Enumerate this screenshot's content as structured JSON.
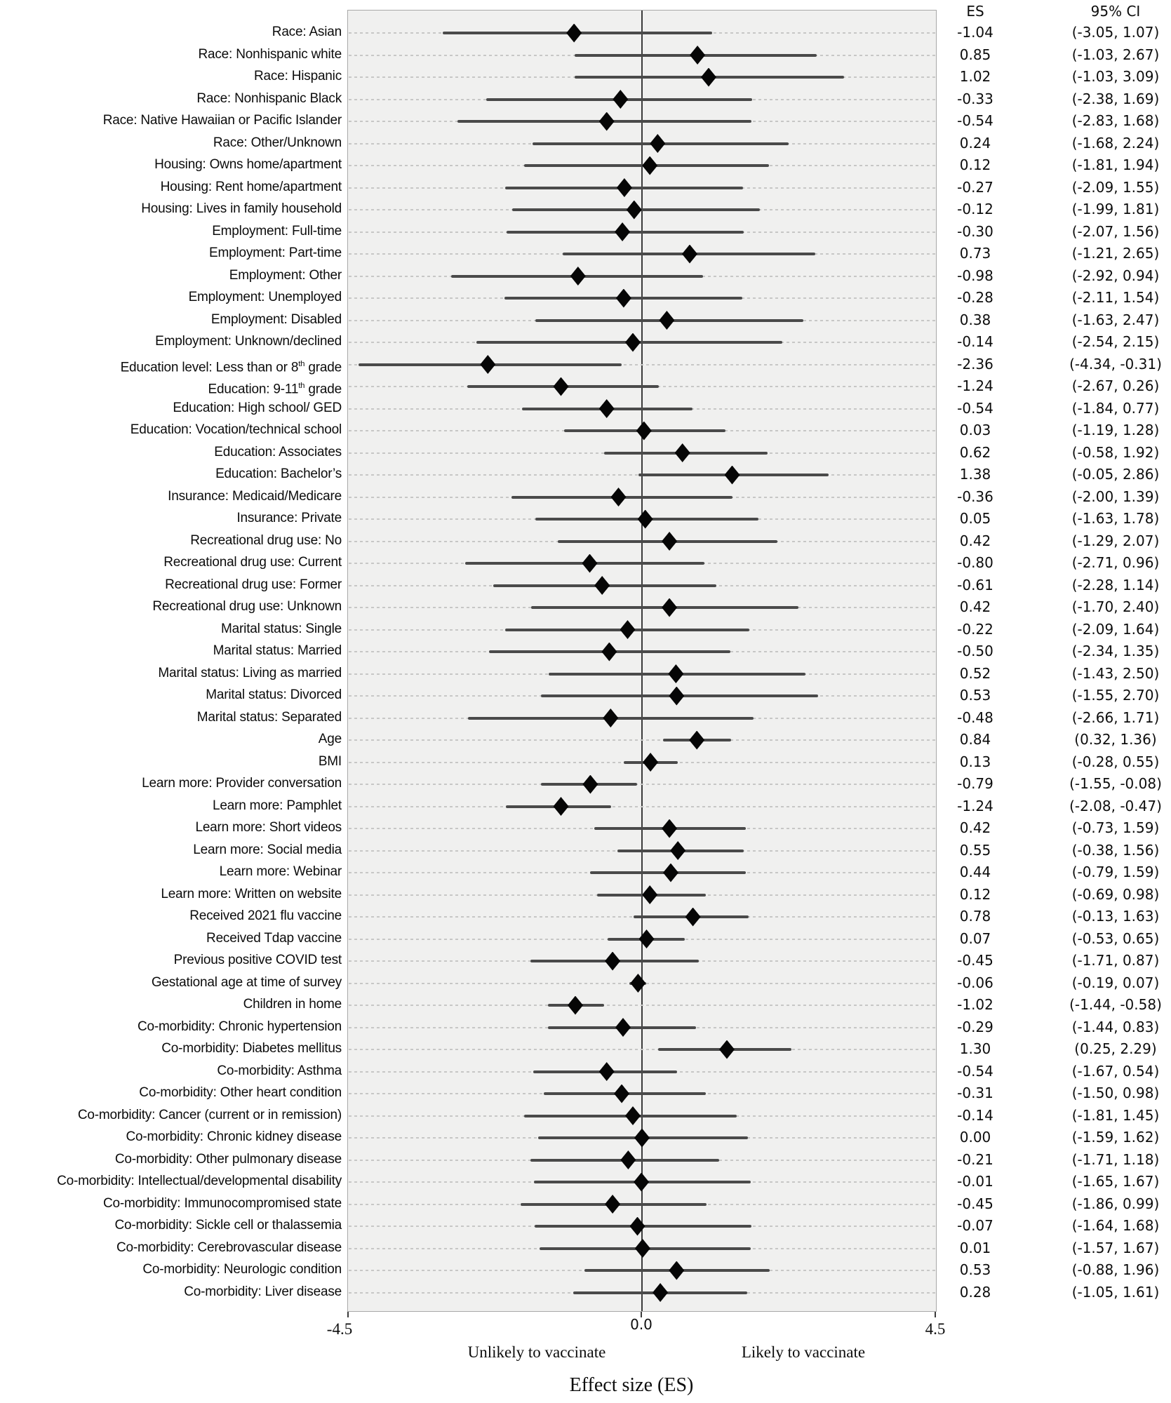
{
  "chart_data": {
    "type": "forest",
    "title": "",
    "xlabel": "Effect size (ES)",
    "xlim": [
      -4.5,
      4.5
    ],
    "x_ticks": [
      "-4.5",
      "0.0",
      "4.5"
    ],
    "zero_reference_line": 0,
    "left_annotation": "Unlikely to vaccinate",
    "right_annotation": "Likely to vaccinate",
    "es_column_header": "ES",
    "ci_column_header": "95% CI",
    "grid": "dashed-horizontal-per-row",
    "legend_position": "none",
    "rows": [
      {
        "label": "Race: Asian",
        "es": -1.04,
        "lo": -3.05,
        "hi": 1.07
      },
      {
        "label": "Race: Nonhispanic white",
        "es": 0.85,
        "lo": -1.03,
        "hi": 2.67
      },
      {
        "label": "Race: Hispanic",
        "es": 1.02,
        "lo": -1.03,
        "hi": 3.09
      },
      {
        "label": "Race: Nonhispanic Black",
        "es": -0.33,
        "lo": -2.38,
        "hi": 1.69
      },
      {
        "label": "Race: Native Hawaiian or Pacific Islander",
        "es": -0.54,
        "lo": -2.83,
        "hi": 1.68
      },
      {
        "label": "Race: Other/Unknown",
        "es": 0.24,
        "lo": -1.68,
        "hi": 2.24
      },
      {
        "label": "Housing: Owns home/apartment",
        "es": 0.12,
        "lo": -1.81,
        "hi": 1.94
      },
      {
        "label": "Housing: Rent home/apartment",
        "es": -0.27,
        "lo": -2.09,
        "hi": 1.55
      },
      {
        "label": "Housing: Lives in family household",
        "es": -0.12,
        "lo": -1.99,
        "hi": 1.81
      },
      {
        "label": "Employment: Full-time",
        "es": -0.3,
        "lo": -2.07,
        "hi": 1.56
      },
      {
        "label": "Employment: Part-time",
        "es": 0.73,
        "lo": -1.21,
        "hi": 2.65
      },
      {
        "label": "Employment: Other",
        "es": -0.98,
        "lo": -2.92,
        "hi": 0.94
      },
      {
        "label": "Employment: Unemployed",
        "es": -0.28,
        "lo": -2.11,
        "hi": 1.54
      },
      {
        "label": "Employment: Disabled",
        "es": 0.38,
        "lo": -1.63,
        "hi": 2.47
      },
      {
        "label": "Employment: Unknown/declined",
        "es": -0.14,
        "lo": -2.54,
        "hi": 2.15
      },
      {
        "label": "Education level: Less than or 8^{th} grade",
        "es": -2.36,
        "lo": -4.34,
        "hi": -0.31
      },
      {
        "label": "Education: 9-11^{th} grade",
        "es": -1.24,
        "lo": -2.67,
        "hi": 0.26
      },
      {
        "label": "Education: High school/ GED",
        "es": -0.54,
        "lo": -1.84,
        "hi": 0.77
      },
      {
        "label": "Education: Vocation/technical school",
        "es": 0.03,
        "lo": -1.19,
        "hi": 1.28
      },
      {
        "label": "Education: Associates",
        "es": 0.62,
        "lo": -0.58,
        "hi": 1.92
      },
      {
        "label": "Education: Bachelor’s",
        "es": 1.38,
        "lo": -0.05,
        "hi": 2.86
      },
      {
        "label": "Insurance: Medicaid/Medicare",
        "es": -0.36,
        "lo": -2.0,
        "hi": 1.39
      },
      {
        "label": "Insurance: Private",
        "es": 0.05,
        "lo": -1.63,
        "hi": 1.78
      },
      {
        "label": "Recreational drug use: No",
        "es": 0.42,
        "lo": -1.29,
        "hi": 2.07
      },
      {
        "label": "Recreational drug use: Current",
        "es": -0.8,
        "lo": -2.71,
        "hi": 0.96
      },
      {
        "label": "Recreational drug use: Former",
        "es": -0.61,
        "lo": -2.28,
        "hi": 1.14
      },
      {
        "label": "Recreational drug use: Unknown",
        "es": 0.42,
        "lo": -1.7,
        "hi": 2.4
      },
      {
        "label": "Marital status: Single",
        "es": -0.22,
        "lo": -2.09,
        "hi": 1.64
      },
      {
        "label": "Marital status: Married",
        "es": -0.5,
        "lo": -2.34,
        "hi": 1.35
      },
      {
        "label": "Marital status: Living as married",
        "es": 0.52,
        "lo": -1.43,
        "hi": 2.5
      },
      {
        "label": "Marital status: Divorced",
        "es": 0.53,
        "lo": -1.55,
        "hi": 2.7
      },
      {
        "label": "Marital status: Separated",
        "es": -0.48,
        "lo": -2.66,
        "hi": 1.71
      },
      {
        "label": "Age",
        "es": 0.84,
        "lo": 0.32,
        "hi": 1.36
      },
      {
        "label": "BMI",
        "es": 0.13,
        "lo": -0.28,
        "hi": 0.55
      },
      {
        "label": "Learn more: Provider conversation",
        "es": -0.79,
        "lo": -1.55,
        "hi": -0.08
      },
      {
        "label": "Learn more: Pamphlet",
        "es": -1.24,
        "lo": -2.08,
        "hi": -0.47
      },
      {
        "label": "Learn more: Short videos",
        "es": 0.42,
        "lo": -0.73,
        "hi": 1.59
      },
      {
        "label": "Learn more: Social media",
        "es": 0.55,
        "lo": -0.38,
        "hi": 1.56
      },
      {
        "label": "Learn more: Webinar",
        "es": 0.44,
        "lo": -0.79,
        "hi": 1.59
      },
      {
        "label": "Learn more: Written on website",
        "es": 0.12,
        "lo": -0.69,
        "hi": 0.98
      },
      {
        "label": "Received 2021 flu vaccine",
        "es": 0.78,
        "lo": -0.13,
        "hi": 1.63
      },
      {
        "label": "Received Tdap vaccine",
        "es": 0.07,
        "lo": -0.53,
        "hi": 0.65
      },
      {
        "label": "Previous positive COVID test",
        "es": -0.45,
        "lo": -1.71,
        "hi": 0.87
      },
      {
        "label": "Gestational age at time of survey",
        "es": -0.06,
        "lo": -0.19,
        "hi": 0.07
      },
      {
        "label": "Children in home",
        "es": -1.02,
        "lo": -1.44,
        "hi": -0.58
      },
      {
        "label": "Co-morbidity: Chronic hypertension",
        "es": -0.29,
        "lo": -1.44,
        "hi": 0.83
      },
      {
        "label": "Co-morbidity: Diabetes mellitus",
        "es": 1.3,
        "lo": 0.25,
        "hi": 2.29
      },
      {
        "label": "Co-morbidity: Asthma",
        "es": -0.54,
        "lo": -1.67,
        "hi": 0.54
      },
      {
        "label": "Co-morbidity: Other heart condition",
        "es": -0.31,
        "lo": -1.5,
        "hi": 0.98
      },
      {
        "label": "Co-morbidity: Cancer (current or in remission)",
        "es": -0.14,
        "lo": -1.81,
        "hi": 1.45
      },
      {
        "label": "Co-morbidity: Chronic kidney disease",
        "es": 0.0,
        "lo": -1.59,
        "hi": 1.62
      },
      {
        "label": "Co-morbidity: Other pulmonary disease",
        "es": -0.21,
        "lo": -1.71,
        "hi": 1.18
      },
      {
        "label": "Co-morbidity: Intellectual/developmental disability",
        "es": -0.01,
        "lo": -1.65,
        "hi": 1.67
      },
      {
        "label": "Co-morbidity: Immunocompromised state",
        "es": -0.45,
        "lo": -1.86,
        "hi": 0.99
      },
      {
        "label": "Co-morbidity: Sickle cell or thalassemia",
        "es": -0.07,
        "lo": -1.64,
        "hi": 1.68
      },
      {
        "label": "Co-morbidity: Cerebrovascular disease",
        "es": 0.01,
        "lo": -1.57,
        "hi": 1.67
      },
      {
        "label": "Co-morbidity: Neurologic condition",
        "es": 0.53,
        "lo": -0.88,
        "hi": 1.96
      },
      {
        "label": "Co-morbidity: Liver disease",
        "es": 0.28,
        "lo": -1.05,
        "hi": 1.61
      }
    ]
  },
  "colors": {
    "plot_background": "#f0f0ef",
    "plot_border": "#a8a8a8",
    "gridline": "#c7c7c6",
    "ci_line": "#4a4a4a",
    "diamond": "#060606",
    "zero_line": "#3b3b3b"
  }
}
